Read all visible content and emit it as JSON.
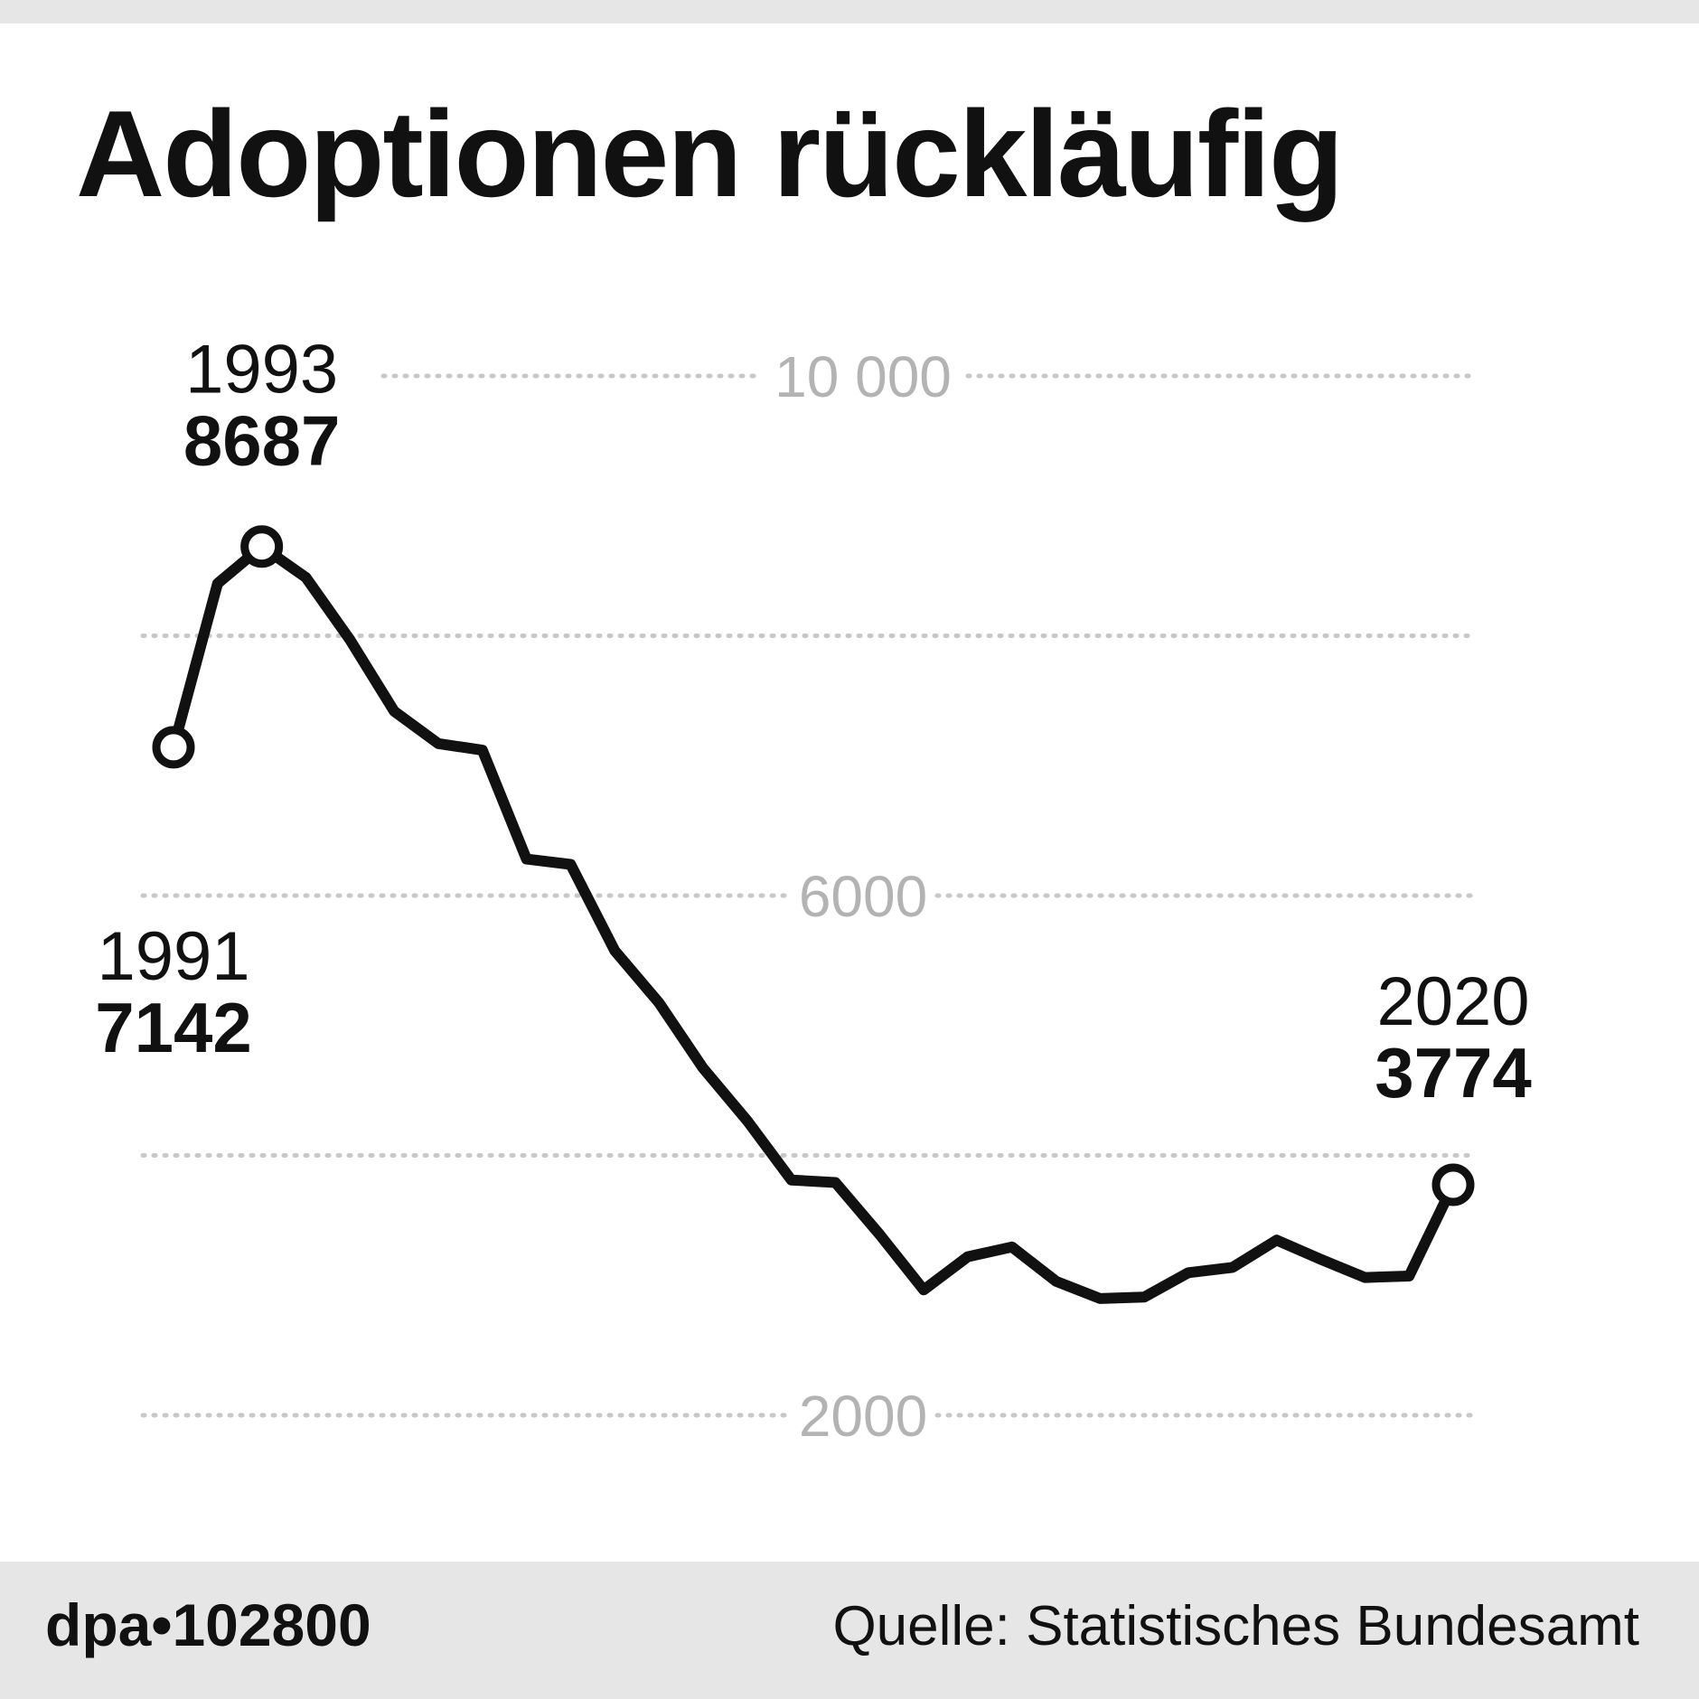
{
  "title": "Adoptionen rückläufig",
  "footer": {
    "code": "dpa•102800",
    "source": "Quelle: Statistisches Bundesamt"
  },
  "colors": {
    "line": "#111111",
    "gridline": "#c8c8c8",
    "tick_label": "#b3b3b3",
    "footer_bg": "#e6e6e6"
  },
  "chart_data": {
    "type": "line",
    "title": "Adoptionen rückläufig",
    "xlabel": "",
    "ylabel": "",
    "grid": true,
    "legend": "none",
    "ylim": [
      0,
      10000
    ],
    "yticks": [
      2000,
      4000,
      6000,
      8000,
      10000
    ],
    "ytick_labels": [
      "2000",
      "",
      "6000",
      "",
      "10 000"
    ],
    "x": [
      1991,
      1992,
      1993,
      1994,
      1995,
      1996,
      1997,
      1998,
      1999,
      2000,
      2001,
      2002,
      2003,
      2004,
      2005,
      2006,
      2007,
      2008,
      2009,
      2010,
      2011,
      2012,
      2013,
      2014,
      2015,
      2016,
      2017,
      2018,
      2019,
      2020
    ],
    "series": [
      {
        "values": [
          7142,
          8403,
          8687,
          8449,
          7969,
          7420,
          7170,
          7119,
          6281,
          6240,
          5576,
          5176,
          4673,
          4267,
          3811,
          3791,
          3393,
          2965,
          3220,
          3295,
          3031,
          2898,
          2910,
          3097,
          3138,
          3348,
          3200,
          3060,
          3071,
          3774
        ]
      }
    ],
    "annotations": [
      {
        "year": "1991",
        "value": "7142"
      },
      {
        "year": "1993",
        "value": "8687"
      },
      {
        "year": "2020",
        "value": "3774"
      }
    ]
  }
}
